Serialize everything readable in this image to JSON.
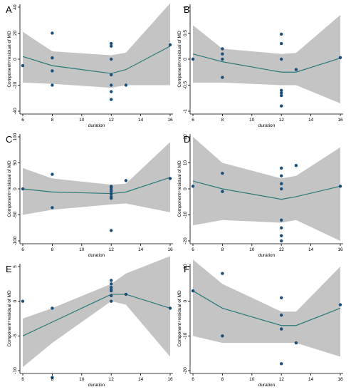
{
  "chart_data": [
    {
      "type": "line",
      "panel_label": "A",
      "xlabel": "duration",
      "ylabel": "Component+residual of MD",
      "xlim": [
        6,
        16
      ],
      "ylim": [
        -40,
        40
      ],
      "x_ticks": [
        6,
        8,
        10,
        12,
        14,
        16
      ],
      "y_ticks": [
        -40,
        -20,
        0,
        20,
        40
      ],
      "band": {
        "x": [
          6,
          8,
          12,
          13,
          16
        ],
        "upper": [
          21,
          6,
          3,
          5,
          43
        ],
        "lower": [
          -18,
          -19,
          -22,
          -20,
          -20
        ]
      },
      "fit": {
        "x": [
          6,
          8,
          12,
          13,
          16
        ],
        "y": [
          2,
          -5,
          -11,
          -8,
          10
        ]
      },
      "points": {
        "x": [
          6,
          8,
          8,
          8,
          8,
          12,
          12,
          12,
          12,
          12,
          12,
          12,
          13,
          16
        ],
        "y": [
          -5,
          20,
          1,
          -9,
          -20,
          12,
          0,
          -12,
          -25,
          -31,
          -20,
          10,
          -20,
          11
        ]
      }
    },
    {
      "type": "line",
      "panel_label": "B",
      "xlabel": "duration",
      "ylabel": "Component+residual of MD",
      "xlim": [
        6,
        16
      ],
      "ylim": [
        -1,
        1
      ],
      "x_ticks": [
        6,
        8,
        10,
        12,
        14,
        16
      ],
      "y_ticks": [
        -1,
        -0.5,
        0,
        0.5,
        1
      ],
      "band": {
        "x": [
          6,
          8,
          12,
          13,
          16
        ],
        "upper": [
          0.65,
          0.2,
          0.1,
          0.12,
          0.85
        ],
        "lower": [
          -0.45,
          -0.45,
          -0.5,
          -0.5,
          -0.85
        ]
      },
      "fit": {
        "x": [
          6,
          8,
          12,
          13,
          16
        ],
        "y": [
          0.1,
          -0.05,
          -0.25,
          -0.25,
          0.02
        ]
      },
      "points": {
        "x": [
          6,
          8,
          8,
          8,
          8,
          12,
          12,
          12,
          12,
          12,
          12,
          12,
          13,
          16
        ],
        "y": [
          0.0,
          0.2,
          0.1,
          0.0,
          -0.35,
          0.48,
          0.3,
          -0.6,
          -0.65,
          -0.7,
          -0.9,
          0.0,
          -0.2,
          0.03
        ]
      }
    },
    {
      "type": "line",
      "panel_label": "C",
      "xlabel": "duration",
      "ylabel": "Component+residual of MD",
      "xlim": [
        6,
        16
      ],
      "ylim": [
        -100,
        100
      ],
      "x_ticks": [
        6,
        8,
        10,
        12,
        14,
        16
      ],
      "y_ticks": [
        -100,
        -50,
        0,
        50,
        100
      ],
      "band": {
        "x": [
          6,
          8,
          12,
          13,
          16
        ],
        "upper": [
          40,
          20,
          8,
          10,
          90
        ],
        "lower": [
          -50,
          -40,
          -30,
          -28,
          -45
        ]
      },
      "fit": {
        "x": [
          6,
          8,
          12,
          13,
          16
        ],
        "y": [
          0,
          -6,
          -9,
          -6,
          22
        ]
      },
      "points": {
        "x": [
          6,
          8,
          8,
          12,
          12,
          12,
          12,
          12,
          12,
          12,
          12,
          12,
          13,
          16
        ],
        "y": [
          0,
          28,
          -36,
          5,
          2,
          -2,
          -5,
          -10,
          -15,
          -18,
          3,
          -80,
          16,
          20
        ]
      }
    },
    {
      "type": "line",
      "panel_label": "D",
      "xlabel": "duration",
      "ylabel": "Component+residual of MD",
      "xlim": [
        6,
        16
      ],
      "ylim": [
        -20,
        20
      ],
      "x_ticks": [
        6,
        8,
        10,
        12,
        14,
        16
      ],
      "y_ticks": [
        -20,
        -10,
        0,
        10,
        20
      ],
      "band": {
        "x": [
          6,
          8,
          12,
          13,
          16
        ],
        "upper": [
          20,
          10,
          4,
          5,
          16
        ],
        "lower": [
          -14,
          -12,
          -13,
          -12,
          -20
        ]
      },
      "fit": {
        "x": [
          6,
          8,
          12,
          13,
          16
        ],
        "y": [
          3,
          0,
          -4,
          -3,
          1
        ]
      },
      "points": {
        "x": [
          6,
          8,
          8,
          12,
          12,
          12,
          12,
          12,
          12,
          12,
          12,
          13,
          16
        ],
        "y": [
          1,
          6,
          -1,
          8,
          5,
          2,
          -12,
          -15,
          -18,
          -20,
          0,
          9,
          1
        ]
      }
    },
    {
      "type": "line",
      "panel_label": "E",
      "xlabel": "duration",
      "ylabel": "Component+residual of MD",
      "xlim": [
        6,
        16
      ],
      "ylim": [
        -10,
        5
      ],
      "x_ticks": [
        6,
        8,
        10,
        12,
        14,
        16
      ],
      "y_ticks": [
        -10,
        -5,
        0,
        5
      ],
      "band": {
        "x": [
          6,
          8,
          12,
          13,
          16
        ],
        "upper": [
          -2.5,
          -1,
          2.5,
          4,
          6.5
        ],
        "lower": [
          -9.5,
          -6,
          0,
          -0.5,
          -8
        ]
      },
      "fit": {
        "x": [
          6,
          8,
          12,
          13,
          16
        ],
        "y": [
          -5,
          -3,
          1,
          1,
          -1
        ]
      },
      "points": {
        "x": [
          6,
          8,
          8,
          12,
          12,
          12,
          12,
          12,
          12,
          12,
          13,
          16
        ],
        "y": [
          0,
          -1,
          -11,
          3,
          2.5,
          2,
          1.7,
          1.5,
          0.8,
          0,
          1,
          -1
        ]
      }
    },
    {
      "type": "line",
      "panel_label": "F",
      "xlabel": "duration",
      "ylabel": "Component+residual of MD",
      "xlim": [
        6,
        16
      ],
      "ylim": [
        -20,
        10
      ],
      "x_ticks": [
        6,
        8,
        10,
        12,
        14,
        16
      ],
      "y_ticks": [
        -20,
        -10,
        0,
        10
      ],
      "band": {
        "x": [
          6,
          8,
          12,
          13,
          16
        ],
        "upper": [
          12,
          5,
          -3,
          -3,
          10
        ],
        "lower": [
          -10,
          -12,
          -12,
          -12,
          -16
        ]
      },
      "fit": {
        "x": [
          6,
          8,
          12,
          13,
          16
        ],
        "y": [
          3,
          -2,
          -7,
          -7,
          -2
        ]
      },
      "points": {
        "x": [
          6,
          8,
          8,
          12,
          12,
          12,
          12,
          13,
          16
        ],
        "y": [
          3,
          8,
          -10,
          1,
          -4,
          -8,
          -18,
          -12,
          -1
        ]
      }
    }
  ]
}
